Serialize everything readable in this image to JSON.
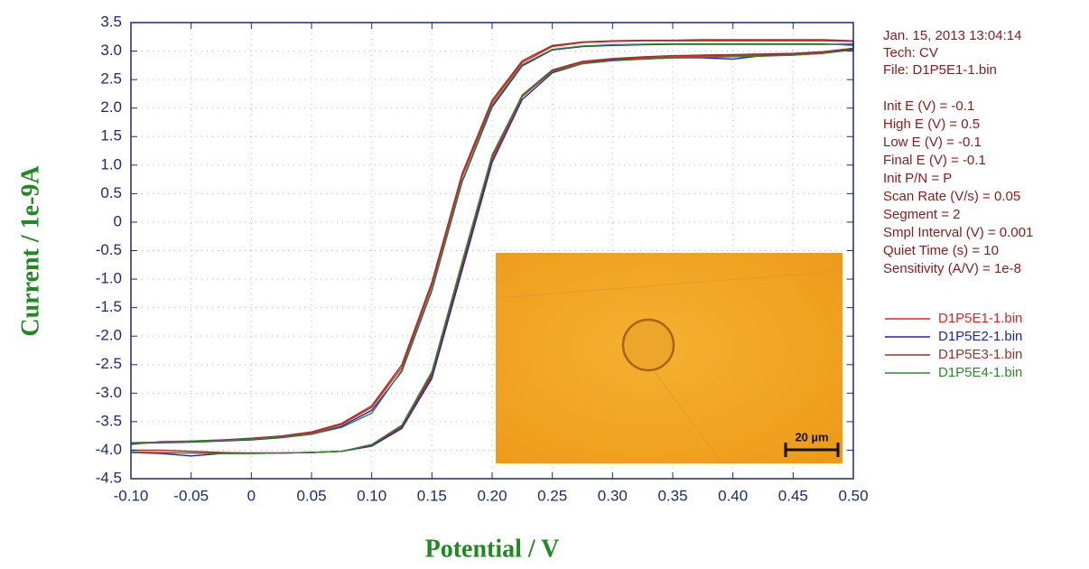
{
  "chart_data": {
    "type": "line",
    "x_label": "Potential / V",
    "y_label": "Current / 1e-9A",
    "xlim": [
      -0.1,
      0.5
    ],
    "ylim": [
      -4.5,
      3.5
    ],
    "xticks": [
      {
        "value": -0.1,
        "label": "-0.10"
      },
      -0.05,
      0,
      0.05,
      {
        "value": 0.1,
        "label": "0.10"
      },
      0.15,
      {
        "value": 0.2,
        "label": "0.20"
      },
      0.25,
      {
        "value": 0.3,
        "label": "0.30"
      },
      0.35,
      {
        "value": 0.4,
        "label": "0.40"
      },
      0.45,
      {
        "value": 0.5,
        "label": "0.50"
      }
    ],
    "yticks": [
      3.5,
      {
        "value": 3,
        "label": "3.0"
      },
      2.5,
      {
        "value": 2,
        "label": "2.0"
      },
      1.5,
      {
        "value": 1,
        "label": "1.0"
      },
      0.5,
      0,
      -0.5,
      {
        "value": -1,
        "label": "-1.0"
      },
      -1.5,
      {
        "value": -2,
        "label": "-2.0"
      },
      -2.5,
      {
        "value": -3,
        "label": "-3.0"
      },
      -3.5,
      {
        "value": -4,
        "label": "-4.0"
      },
      -4.5
    ],
    "grid": true,
    "x": [
      -0.1,
      -0.075,
      -0.05,
      -0.025,
      0,
      0.025,
      0.05,
      0.075,
      0.1,
      0.125,
      0.15,
      0.175,
      0.2,
      0.225,
      0.25,
      0.275,
      0.3,
      0.325,
      0.35,
      0.375,
      0.4,
      0.425,
      0.45,
      0.475,
      0.5,
      0.5,
      0.475,
      0.45,
      0.425,
      0.4,
      0.375,
      0.35,
      0.325,
      0.3,
      0.275,
      0.25,
      0.225,
      0.2,
      0.175,
      0.15,
      0.125,
      0.1,
      0.075,
      0.05,
      0.025,
      0,
      -0.025,
      -0.05,
      -0.075,
      -0.1
    ],
    "series": [
      {
        "name": "D1P5E1-1.bin",
        "color": "#e82020",
        "values": [
          -4.03,
          -4.04,
          -4.05,
          -4.05,
          -4.05,
          -4.05,
          -4.04,
          -4.02,
          -3.92,
          -3.6,
          -2.7,
          -0.8,
          1.1,
          2.2,
          2.65,
          2.8,
          2.85,
          2.88,
          2.9,
          2.91,
          2.92,
          2.93,
          2.95,
          2.98,
          3.05,
          3.17,
          3.18,
          3.18,
          3.18,
          3.18,
          3.18,
          3.18,
          3.18,
          3.17,
          3.15,
          3.08,
          2.8,
          2.1,
          0.8,
          -1.1,
          -2.55,
          -3.25,
          -3.55,
          -3.7,
          -3.76,
          -3.8,
          -3.83,
          -3.85,
          -3.86,
          -3.87
        ]
      },
      {
        "name": "D1P5E2-1.bin",
        "color": "#2020c8",
        "values": [
          -4.04,
          -4.06,
          -4.1,
          -4.06,
          -4.05,
          -4.05,
          -4.04,
          -4.02,
          -3.93,
          -3.62,
          -2.74,
          -0.85,
          1.05,
          2.15,
          2.62,
          2.78,
          2.84,
          2.86,
          2.88,
          2.88,
          2.86,
          2.92,
          2.93,
          2.96,
          3.04,
          3.12,
          3.12,
          3.12,
          3.12,
          3.12,
          3.12,
          3.12,
          3.11,
          3.1,
          3.08,
          3.02,
          2.74,
          2.02,
          0.7,
          -1.2,
          -2.62,
          -3.3,
          -3.58,
          -3.72,
          -3.78,
          -3.82,
          -3.84,
          -3.86,
          -3.87,
          -3.88
        ]
      },
      {
        "name": "D1P5E3-1.bin",
        "color": "#a03028",
        "values": [
          -4.0,
          -4.0,
          -4.02,
          -4.04,
          -4.05,
          -4.05,
          -4.04,
          -4.02,
          -3.91,
          -3.58,
          -2.66,
          -0.75,
          1.15,
          2.23,
          2.67,
          2.82,
          2.87,
          2.9,
          2.92,
          2.93,
          2.94,
          2.95,
          2.96,
          2.99,
          3.05,
          3.18,
          3.2,
          3.2,
          3.2,
          3.2,
          3.2,
          3.19,
          3.19,
          3.18,
          3.16,
          3.1,
          2.83,
          2.14,
          0.85,
          -1.05,
          -2.5,
          -3.22,
          -3.53,
          -3.68,
          -3.75,
          -3.79,
          -3.82,
          -3.84,
          -3.85,
          -3.9
        ]
      },
      {
        "name": "D1P5E4-1.bin",
        "color": "#2a8a2a",
        "values": [
          -4.04,
          -4.05,
          -4.05,
          -4.06,
          -4.06,
          -4.05,
          -4.04,
          -4.02,
          -3.9,
          -3.56,
          -2.62,
          -0.7,
          1.18,
          2.22,
          2.64,
          2.78,
          2.83,
          2.86,
          2.88,
          2.89,
          2.9,
          2.91,
          2.93,
          2.96,
          3.02,
          3.1,
          3.13,
          3.13,
          3.13,
          3.13,
          3.13,
          3.13,
          3.12,
          3.11,
          3.09,
          3.03,
          2.76,
          2.05,
          0.72,
          -1.18,
          -2.6,
          -3.35,
          -3.6,
          -3.72,
          -3.77,
          -3.81,
          -3.83,
          -3.85,
          -3.86,
          -3.87
        ]
      }
    ],
    "info_header": [
      "Jan. 15, 2013   13:04:14",
      "Tech: CV",
      "File: D1P5E1-1.bin"
    ],
    "info_params": [
      "Init E (V) = -0.1",
      "High E (V) = 0.5",
      "Low E (V) = -0.1",
      "Final E (V) = -0.1",
      "Init P/N = P",
      "Scan Rate (V/s) = 0.05",
      "Segment = 2",
      "Smpl Interval (V) = 0.001",
      "Quiet Time (s) = 10",
      "Sensitivity (A/V) = 1e-8"
    ],
    "inset_scale_label": "20 µm"
  }
}
